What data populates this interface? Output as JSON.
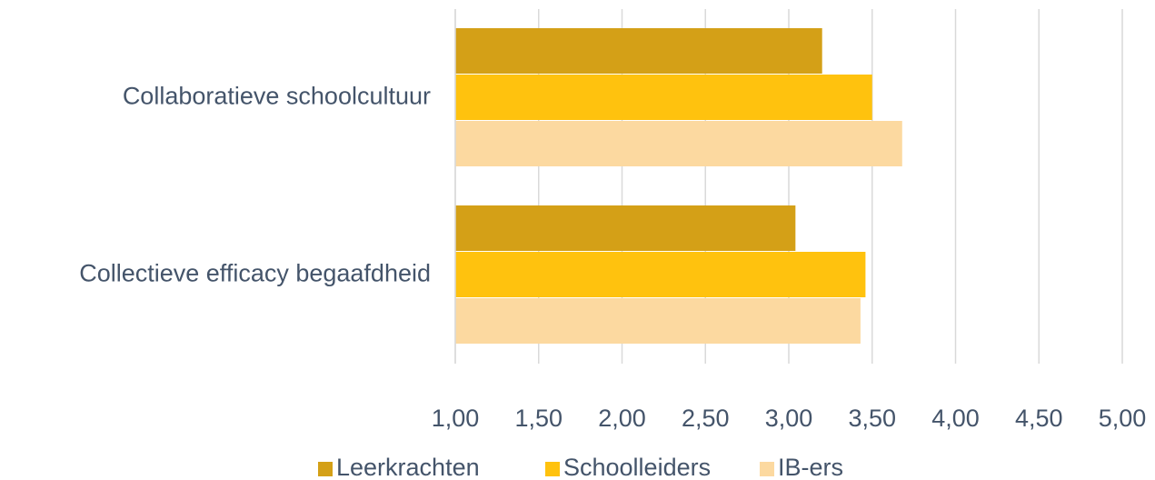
{
  "chart_data": {
    "type": "bar",
    "orientation": "horizontal",
    "categories": [
      "Collaboratieve schoolcultuur",
      "Collectieve efficacy begaafdheid"
    ],
    "series": [
      {
        "name": "Leerkrachten",
        "color": "#d4a017",
        "values": [
          3.2,
          3.04
        ]
      },
      {
        "name": "Schoolleiders",
        "color": "#ffc20e",
        "values": [
          3.5,
          3.46
        ]
      },
      {
        "name": "IB-ers",
        "color": "#fcd9a0",
        "values": [
          3.68,
          3.43
        ]
      }
    ],
    "xlim": [
      1,
      5
    ],
    "xticks": [
      {
        "value": 1,
        "label": "1,00"
      },
      {
        "value": 1.5,
        "label": "1,50"
      },
      {
        "value": 2,
        "label": "2,00"
      },
      {
        "value": 2.5,
        "label": "2,50"
      },
      {
        "value": 3,
        "label": "3,00"
      },
      {
        "value": 3.5,
        "label": "3,50"
      },
      {
        "value": 4,
        "label": "4,00"
      },
      {
        "value": 4.5,
        "label": "4,50"
      },
      {
        "value": 5,
        "label": "5,00"
      }
    ],
    "grid": true,
    "legend": "bottom"
  }
}
